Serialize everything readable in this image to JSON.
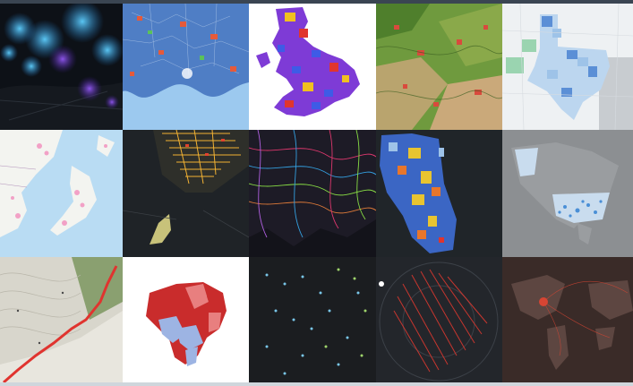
{
  "gallery": {
    "rows": 3,
    "cols": 5,
    "tiles": [
      {
        "name": "tile-blue-glow-heatmap",
        "palette": [
          "#0b1016",
          "#1ea7ff",
          "#7a3cff"
        ]
      },
      {
        "name": "tile-mediterranean-choropleth",
        "palette": [
          "#8fc3ef",
          "#4b79c2",
          "#e65a3a"
        ]
      },
      {
        "name": "tile-uk-district-choropleth",
        "palette": [
          "#ffffff",
          "#7e3bd6",
          "#3e5be6"
        ]
      },
      {
        "name": "tile-terrain-landcover",
        "palette": [
          "#5a8f37",
          "#c9b27a",
          "#d94a3d"
        ]
      },
      {
        "name": "tile-texas-choropleth",
        "palette": [
          "#eef2f4",
          "#9bc4e8",
          "#5b8fd6"
        ]
      },
      {
        "name": "tile-east-asia-basemap",
        "palette": [
          "#b9dcf3",
          "#f2f4f1",
          "#f2a1c6"
        ]
      },
      {
        "name": "tile-manhattan-buildings",
        "palette": [
          "#1e2226",
          "#f2b233",
          "#c8c27a"
        ]
      },
      {
        "name": "tile-dense-rivers-network",
        "palette": [
          "#12121a",
          "#ff3c7a",
          "#38b6ff"
        ]
      },
      {
        "name": "tile-chicago-choropleth",
        "palette": [
          "#1f2429",
          "#e8c430",
          "#3b66c4"
        ]
      },
      {
        "name": "tile-north-america-dots",
        "palette": [
          "#8a8d90",
          "#c9dcee",
          "#4a8fd6"
        ]
      },
      {
        "name": "tile-hillshade-topo",
        "palette": [
          "#e9e7df",
          "#8aa070",
          "#e0342f"
        ]
      },
      {
        "name": "tile-brazil-election-map",
        "palette": [
          "#ffffff",
          "#c92c2c",
          "#9db4e3"
        ]
      },
      {
        "name": "tile-night-points",
        "palette": [
          "#1b1d20",
          "#79c6e8",
          "#9fd46b"
        ]
      },
      {
        "name": "tile-nyc-flow-lines",
        "palette": [
          "#23262b",
          "#d9382f",
          "#ffffff"
        ]
      },
      {
        "name": "tile-world-dark-arcs",
        "palette": [
          "#3a2b28",
          "#5d4641",
          "#d64533"
        ]
      }
    ]
  }
}
